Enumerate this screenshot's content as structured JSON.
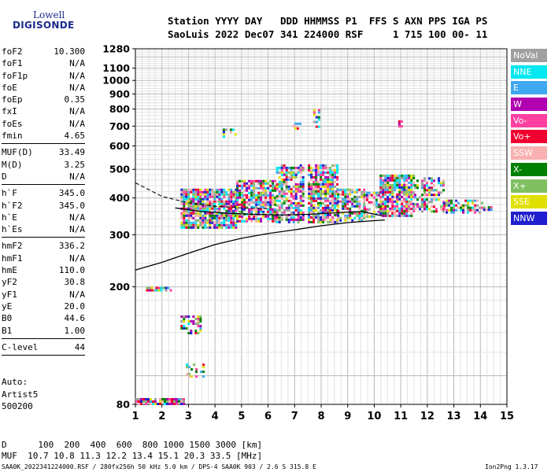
{
  "logo": {
    "line1": "Lowell",
    "line2": "DIGISONDE"
  },
  "header": {
    "line1": "Station YYYY DAY   DDD HHMMSS P1  FFS S AXN PPS IGA PS",
    "line2": "SaoLuis 2022 Dec07 341 224000 RSF     1 715 100 00- 11"
  },
  "params": [
    {
      "name": "foF2",
      "value": "10.300"
    },
    {
      "name": "foF1",
      "value": "N/A"
    },
    {
      "name": "foF1p",
      "value": "N/A"
    },
    {
      "name": "foE",
      "value": "N/A"
    },
    {
      "name": "foEp",
      "value": "0.35"
    },
    {
      "name": "fxI",
      "value": "N/A"
    },
    {
      "name": "foEs",
      "value": "N/A"
    },
    {
      "name": "fmin",
      "value": "4.65"
    },
    {
      "sep": true
    },
    {
      "name": "MUF(D)",
      "value": "33.49"
    },
    {
      "name": "M(D)",
      "value": "3.25"
    },
    {
      "name": "D",
      "value": "N/A"
    },
    {
      "sep": true
    },
    {
      "name": "h`F",
      "value": "345.0"
    },
    {
      "name": "h`F2",
      "value": "345.0"
    },
    {
      "name": "h`E",
      "value": "N/A"
    },
    {
      "name": "h`Es",
      "value": "N/A"
    },
    {
      "sep": true
    },
    {
      "name": "hmF2",
      "value": "336.2"
    },
    {
      "name": "hmF1",
      "value": "N/A"
    },
    {
      "name": "hmE",
      "value": "110.0"
    },
    {
      "name": "yF2",
      "value": "30.8"
    },
    {
      "name": "yF1",
      "value": "N/A"
    },
    {
      "name": "yE",
      "value": "20.0"
    },
    {
      "name": "B0",
      "value": "44.6"
    },
    {
      "name": "B1",
      "value": "1.00"
    },
    {
      "sep": true
    },
    {
      "name": "C-level",
      "value": "44"
    },
    {
      "sep": true
    }
  ],
  "autoscaling": {
    "line1": "Auto:",
    "line2": "Artist5",
    "line3": "500200"
  },
  "legend": [
    {
      "label": "NoVal",
      "color": "#a0a0a0"
    },
    {
      "label": "NNE",
      "color": "#00e8f0"
    },
    {
      "label": "E",
      "color": "#40a8f0"
    },
    {
      "label": "W",
      "color": "#b000b0"
    },
    {
      "label": "Vo-",
      "color": "#ff40a0"
    },
    {
      "label": "Vo+",
      "color": "#f00030"
    },
    {
      "label": "SSW",
      "color": "#f8b0b0"
    },
    {
      "label": "X-",
      "color": "#008000"
    },
    {
      "label": "X+",
      "color": "#80c060"
    },
    {
      "label": "SSE",
      "color": "#e0e000"
    },
    {
      "label": "NNW",
      "color": "#2020d0"
    }
  ],
  "chart_data": {
    "type": "scatter",
    "title": "",
    "xlabel": "",
    "ylabel": "",
    "xlim": [
      1,
      15
    ],
    "ylim": [
      80,
      1280
    ],
    "xticks": [
      1,
      2,
      3,
      4,
      5,
      6,
      7,
      8,
      9,
      10,
      11,
      12,
      13,
      14,
      15
    ],
    "yticks": [
      80,
      200,
      300,
      400,
      500,
      600,
      700,
      800,
      900,
      1000,
      1100,
      1280
    ],
    "grid": true,
    "y_scale": "logarithmic",
    "point_colors": [
      "#b000b0",
      "#ff40a0",
      "#f00030",
      "#2020d0",
      "#40a8f0",
      "#00e8f0",
      "#008000",
      "#80c060",
      "#e0e000",
      "#f8b0b0",
      "#a0a0a0"
    ],
    "trace_regions": [
      {
        "x": [
          2.7,
          4.8
        ],
        "y": [
          320,
          430
        ],
        "density": 0.85
      },
      {
        "x": [
          4.8,
          6.3
        ],
        "y": [
          335,
          460
        ],
        "density": 0.75
      },
      {
        "x": [
          6.3,
          7.3
        ],
        "y": [
          330,
          520
        ],
        "density": 0.7
      },
      {
        "x": [
          7.5,
          8.6
        ],
        "y": [
          330,
          520
        ],
        "density": 0.8
      },
      {
        "x": [
          8.6,
          9.6
        ],
        "y": [
          335,
          430
        ],
        "density": 0.7
      },
      {
        "x": [
          9.6,
          10.3
        ],
        "y": [
          345,
          420
        ],
        "density": 0.55
      },
      {
        "x": [
          10.2,
          11.5
        ],
        "y": [
          345,
          480
        ],
        "density": 0.8
      },
      {
        "x": [
          11.5,
          12.6
        ],
        "y": [
          360,
          470
        ],
        "density": 0.5
      },
      {
        "x": [
          12.6,
          14.1
        ],
        "y": [
          360,
          395
        ],
        "density": 0.55
      },
      {
        "x": [
          14.1,
          14.4
        ],
        "y": [
          365,
          375
        ],
        "density": 0.4
      },
      {
        "x": [
          4.2,
          4.8
        ],
        "y": [
          650,
          700
        ],
        "density": 0.25
      },
      {
        "x": [
          6.9,
          7.2
        ],
        "y": [
          690,
          720
        ],
        "density": 0.3
      },
      {
        "x": [
          7.7,
          7.9
        ],
        "y": [
          700,
          800
        ],
        "density": 0.3
      },
      {
        "x": [
          10.9,
          11.1
        ],
        "y": [
          700,
          760
        ],
        "density": 0.3
      },
      {
        "x": [
          2.7,
          3.5
        ],
        "y": [
          140,
          160
        ],
        "density": 0.6
      },
      {
        "x": [
          1.0,
          2.8
        ],
        "y": [
          80,
          84
        ],
        "density": 0.9
      },
      {
        "x": [
          1.4,
          2.3
        ],
        "y": [
          195,
          200
        ],
        "density": 0.8
      },
      {
        "x": [
          2.9,
          3.6
        ],
        "y": [
          100,
          110
        ],
        "density": 0.3
      }
    ],
    "profile_line": [
      {
        "x": 1.0,
        "y": 228
      },
      {
        "x": 2.0,
        "y": 242
      },
      {
        "x": 3.0,
        "y": 260
      },
      {
        "x": 4.0,
        "y": 278
      },
      {
        "x": 5.0,
        "y": 292
      },
      {
        "x": 6.0,
        "y": 303
      },
      {
        "x": 7.0,
        "y": 312
      },
      {
        "x": 8.0,
        "y": 322
      },
      {
        "x": 9.0,
        "y": 330
      },
      {
        "x": 10.0,
        "y": 335
      },
      {
        "x": 10.4,
        "y": 337
      }
    ],
    "extraordinary_trace": [
      {
        "x": 2.5,
        "y": 370
      },
      {
        "x": 3.5,
        "y": 360
      },
      {
        "x": 4.5,
        "y": 355
      },
      {
        "x": 5.5,
        "y": 352
      },
      {
        "x": 6.5,
        "y": 350
      },
      {
        "x": 7.5,
        "y": 352
      },
      {
        "x": 8.5,
        "y": 356
      },
      {
        "x": 9.5,
        "y": 360
      },
      {
        "x": 10.3,
        "y": 348
      }
    ],
    "dashed_trace": [
      {
        "x": 1.0,
        "y": 450
      },
      {
        "x": 2.0,
        "y": 405
      },
      {
        "x": 3.0,
        "y": 385
      },
      {
        "x": 4.0,
        "y": 375
      },
      {
        "x": 5.0,
        "y": 370
      },
      {
        "x": 6.0,
        "y": 368
      }
    ]
  },
  "footer": {
    "line1": "D      100  200  400  600  800 1000 1500 3000 [km]",
    "line2": "MUF  10.7 10.8 11.3 12.2 13.4 15.1 20.3 33.5 [MHz]",
    "line3": "SAA0K_2022341224000.RSF / 280fx256h 50 kHz 5.0 km / DPS-4 SAA0K 903 / 2.6 S 315.8 E",
    "version": "Ion2Png 1.3.17"
  }
}
